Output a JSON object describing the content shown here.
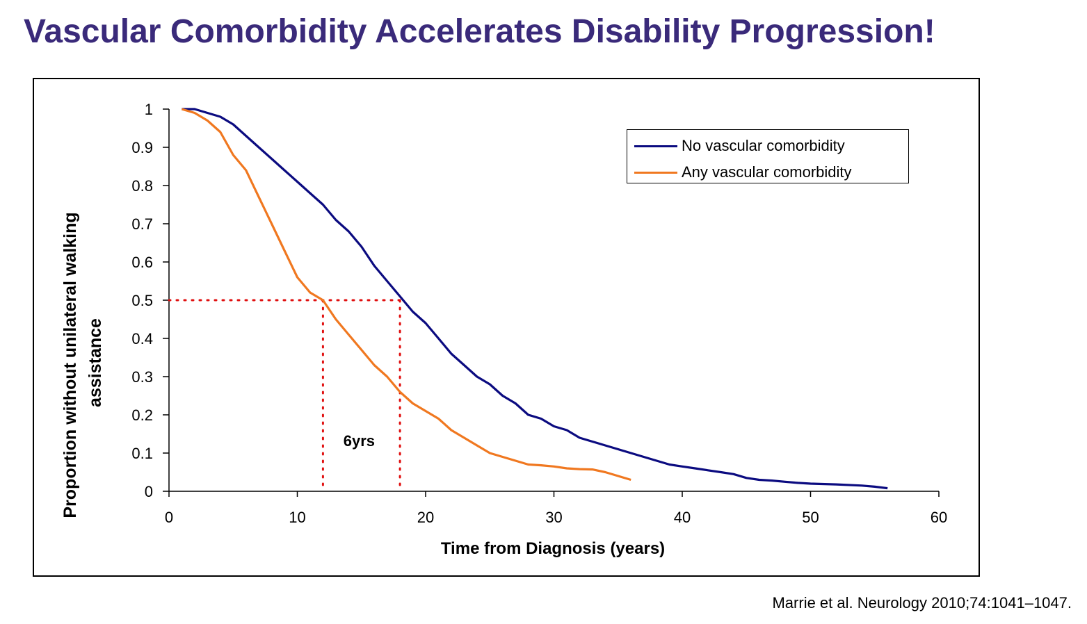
{
  "slide": {
    "title": "Vascular Comorbidity Accelerates Disability Progression!",
    "citation": "Marrie et al. Neurology 2010;74:1041–1047."
  },
  "colors": {
    "title": "#3a2a7a",
    "series_no": "#0b0b80",
    "series_any": "#f07820",
    "guide": "#e01010"
  },
  "chart_data": {
    "type": "line",
    "title": "",
    "xlabel": "Time from Diagnosis (years)",
    "ylabel": "Proportion without unilateral walking assistance",
    "xlim": [
      0,
      60
    ],
    "ylim": [
      0,
      1
    ],
    "xticks": [
      0,
      10,
      20,
      30,
      40,
      50,
      60
    ],
    "yticks": [
      0,
      0.1,
      0.2,
      0.3,
      0.4,
      0.5,
      0.6,
      0.7,
      0.8,
      0.9,
      1
    ],
    "grid": false,
    "legend_position": "top-right",
    "series": [
      {
        "name": "No vascular comorbidity",
        "color": "#0b0b80",
        "points": [
          [
            1,
            1
          ],
          [
            2,
            1
          ],
          [
            3,
            0.99
          ],
          [
            4,
            0.98
          ],
          [
            5,
            0.96
          ],
          [
            6,
            0.93
          ],
          [
            7,
            0.9
          ],
          [
            8,
            0.87
          ],
          [
            9,
            0.84
          ],
          [
            10,
            0.81
          ],
          [
            11,
            0.78
          ],
          [
            12,
            0.75
          ],
          [
            13,
            0.71
          ],
          [
            14,
            0.68
          ],
          [
            15,
            0.64
          ],
          [
            16,
            0.59
          ],
          [
            17,
            0.55
          ],
          [
            18,
            0.51
          ],
          [
            19,
            0.47
          ],
          [
            20,
            0.44
          ],
          [
            21,
            0.4
          ],
          [
            22,
            0.36
          ],
          [
            23,
            0.33
          ],
          [
            24,
            0.3
          ],
          [
            25,
            0.28
          ],
          [
            26,
            0.25
          ],
          [
            27,
            0.23
          ],
          [
            28,
            0.2
          ],
          [
            29,
            0.19
          ],
          [
            30,
            0.17
          ],
          [
            31,
            0.16
          ],
          [
            32,
            0.14
          ],
          [
            33,
            0.13
          ],
          [
            34,
            0.12
          ],
          [
            35,
            0.11
          ],
          [
            36,
            0.1
          ],
          [
            37,
            0.09
          ],
          [
            38,
            0.08
          ],
          [
            39,
            0.07
          ],
          [
            40,
            0.065
          ],
          [
            41,
            0.06
          ],
          [
            42,
            0.055
          ],
          [
            43,
            0.05
          ],
          [
            44,
            0.045
          ],
          [
            45,
            0.035
          ],
          [
            46,
            0.03
          ],
          [
            47,
            0.028
          ],
          [
            48,
            0.025
          ],
          [
            49,
            0.022
          ],
          [
            50,
            0.02
          ],
          [
            52,
            0.018
          ],
          [
            54,
            0.015
          ],
          [
            55,
            0.012
          ],
          [
            56,
            0.008
          ]
        ]
      },
      {
        "name": "Any vascular comorbidity",
        "color": "#f07820",
        "points": [
          [
            1,
            1
          ],
          [
            2,
            0.99
          ],
          [
            3,
            0.97
          ],
          [
            4,
            0.94
          ],
          [
            5,
            0.88
          ],
          [
            6,
            0.84
          ],
          [
            7,
            0.77
          ],
          [
            8,
            0.7
          ],
          [
            9,
            0.63
          ],
          [
            10,
            0.56
          ],
          [
            11,
            0.52
          ],
          [
            12,
            0.5
          ],
          [
            13,
            0.45
          ],
          [
            14,
            0.41
          ],
          [
            15,
            0.37
          ],
          [
            16,
            0.33
          ],
          [
            17,
            0.3
          ],
          [
            18,
            0.26
          ],
          [
            19,
            0.23
          ],
          [
            20,
            0.21
          ],
          [
            21,
            0.19
          ],
          [
            22,
            0.16
          ],
          [
            23,
            0.14
          ],
          [
            24,
            0.12
          ],
          [
            25,
            0.1
          ],
          [
            26,
            0.09
          ],
          [
            27,
            0.08
          ],
          [
            28,
            0.07
          ],
          [
            29,
            0.068
          ],
          [
            30,
            0.065
          ],
          [
            31,
            0.06
          ],
          [
            32,
            0.058
          ],
          [
            33,
            0.057
          ],
          [
            34,
            0.05
          ],
          [
            35,
            0.04
          ],
          [
            36,
            0.03
          ]
        ]
      }
    ],
    "reference_lines": {
      "y": 0.5,
      "x_values": [
        12,
        18
      ]
    },
    "annotations": [
      {
        "text": "6yrs",
        "x": 15,
        "y": 0.13
      }
    ]
  }
}
